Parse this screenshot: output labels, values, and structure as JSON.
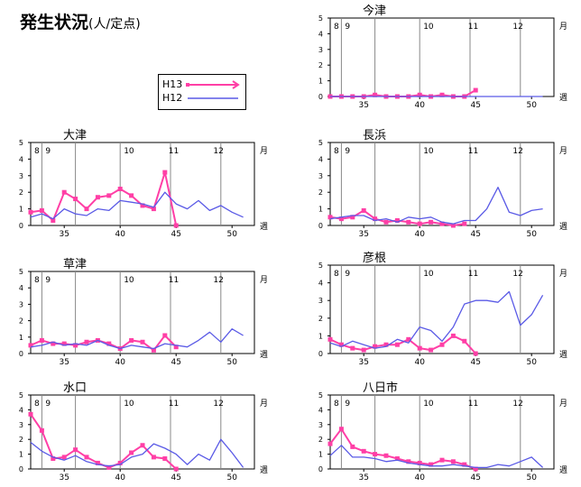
{
  "header": {
    "title": "発生状況",
    "unit": "(人/定点)"
  },
  "legend": {
    "h13": "H13",
    "h12": "H12"
  },
  "colors": {
    "h13": "#ff3fa6",
    "h12": "#5a5ae6",
    "axis": "#000000",
    "grid": "#888888"
  },
  "chart_data": [
    {
      "type": "line",
      "title": "今津",
      "x_ticks": [
        "35",
        "40",
        "45",
        "50"
      ],
      "y_ticks": [
        "0",
        "1",
        "2",
        "3",
        "4",
        "5"
      ],
      "month_labels": [
        "8",
        "9",
        "10",
        "11",
        "12"
      ],
      "month_unit": "月",
      "week_unit": "週",
      "xlim": [
        32,
        52
      ],
      "ylim": [
        0,
        5
      ],
      "series": [
        {
          "name": "H13",
          "x": [
            32,
            33,
            34,
            35,
            36,
            37,
            38,
            39,
            40,
            41,
            42,
            43,
            44,
            45
          ],
          "values": [
            0,
            0,
            0,
            0,
            0.1,
            0,
            0,
            0,
            0.1,
            0,
            0.1,
            0,
            0,
            0.4
          ]
        },
        {
          "name": "H12",
          "x": [
            32,
            33,
            34,
            35,
            36,
            37,
            38,
            39,
            40,
            41,
            42,
            43,
            44,
            45,
            46,
            47,
            48,
            49,
            50,
            51
          ],
          "values": [
            0,
            0,
            0,
            0,
            0,
            0,
            0,
            0,
            0,
            0,
            0,
            0,
            0,
            0,
            0,
            0,
            0,
            0,
            0,
            0
          ]
        }
      ]
    },
    {
      "type": "line",
      "title": "大津",
      "x_ticks": [
        "35",
        "40",
        "45",
        "50"
      ],
      "y_ticks": [
        "0",
        "1",
        "2",
        "3",
        "4",
        "5"
      ],
      "month_labels": [
        "8",
        "9",
        "10",
        "11",
        "12"
      ],
      "month_unit": "月",
      "week_unit": "週",
      "xlim": [
        32,
        52
      ],
      "ylim": [
        0,
        5
      ],
      "series": [
        {
          "name": "H13",
          "x": [
            32,
            33,
            34,
            35,
            36,
            37,
            38,
            39,
            40,
            41,
            42,
            43,
            44,
            45
          ],
          "values": [
            0.8,
            0.9,
            0.3,
            2.0,
            1.6,
            1.0,
            1.7,
            1.8,
            2.2,
            1.8,
            1.2,
            1.0,
            3.2,
            0
          ]
        },
        {
          "name": "H12",
          "x": [
            32,
            33,
            34,
            35,
            36,
            37,
            38,
            39,
            40,
            41,
            42,
            43,
            44,
            45,
            46,
            47,
            48,
            49,
            50,
            51
          ],
          "values": [
            0.5,
            0.7,
            0.4,
            1.0,
            0.7,
            0.6,
            1.0,
            0.9,
            1.5,
            1.4,
            1.3,
            1.1,
            2.0,
            1.3,
            1.0,
            1.5,
            0.9,
            1.2,
            0.8,
            0.5
          ]
        }
      ]
    },
    {
      "type": "line",
      "title": "長浜",
      "x_ticks": [
        "35",
        "40",
        "45",
        "50"
      ],
      "y_ticks": [
        "0",
        "1",
        "2",
        "3",
        "4",
        "5"
      ],
      "month_labels": [
        "8",
        "9",
        "10",
        "11",
        "12"
      ],
      "month_unit": "月",
      "week_unit": "週",
      "xlim": [
        32,
        52
      ],
      "ylim": [
        0,
        5
      ],
      "series": [
        {
          "name": "H13",
          "x": [
            32,
            33,
            34,
            35,
            36,
            37,
            38,
            39,
            40,
            41,
            42,
            43,
            44
          ],
          "values": [
            0.5,
            0.4,
            0.5,
            0.9,
            0.4,
            0.2,
            0.3,
            0.2,
            0.1,
            0.2,
            0.1,
            0,
            0.1
          ]
        },
        {
          "name": "H12",
          "x": [
            32,
            33,
            34,
            35,
            36,
            37,
            38,
            39,
            40,
            41,
            42,
            43,
            44,
            45,
            46,
            47,
            48,
            49,
            50,
            51
          ],
          "values": [
            0.4,
            0.5,
            0.6,
            0.6,
            0.3,
            0.4,
            0.2,
            0.5,
            0.4,
            0.5,
            0.2,
            0.1,
            0.3,
            0.3,
            1.0,
            2.3,
            0.8,
            0.6,
            0.9,
            1.0
          ]
        }
      ]
    },
    {
      "type": "line",
      "title": "草津",
      "x_ticks": [
        "35",
        "40",
        "45",
        "50"
      ],
      "y_ticks": [
        "0",
        "1",
        "2",
        "3",
        "4",
        "5"
      ],
      "month_labels": [
        "8",
        "9",
        "10",
        "11",
        "12"
      ],
      "month_unit": "月",
      "week_unit": "週",
      "xlim": [
        32,
        52
      ],
      "ylim": [
        0,
        5
      ],
      "series": [
        {
          "name": "H13",
          "x": [
            32,
            33,
            34,
            35,
            36,
            37,
            38,
            39,
            40,
            41,
            42,
            43,
            44,
            45
          ],
          "values": [
            0.5,
            0.8,
            0.6,
            0.6,
            0.5,
            0.7,
            0.8,
            0.6,
            0.3,
            0.8,
            0.7,
            0.2,
            1.1,
            0.4
          ]
        },
        {
          "name": "H12",
          "x": [
            32,
            33,
            34,
            35,
            36,
            37,
            38,
            39,
            40,
            41,
            42,
            43,
            44,
            45,
            46,
            47,
            48,
            49,
            50,
            51
          ],
          "values": [
            0.4,
            0.5,
            0.7,
            0.5,
            0.6,
            0.5,
            0.8,
            0.5,
            0.3,
            0.5,
            0.4,
            0.3,
            0.6,
            0.5,
            0.4,
            0.8,
            1.3,
            0.7,
            1.5,
            1.1
          ]
        }
      ]
    },
    {
      "type": "line",
      "title": "彦根",
      "x_ticks": [
        "35",
        "40",
        "45",
        "50"
      ],
      "y_ticks": [
        "0",
        "1",
        "2",
        "3",
        "4",
        "5"
      ],
      "month_labels": [
        "8",
        "9",
        "10",
        "11",
        "12"
      ],
      "month_unit": "月",
      "week_unit": "週",
      "xlim": [
        32,
        52
      ],
      "ylim": [
        0,
        5
      ],
      "series": [
        {
          "name": "H13",
          "x": [
            32,
            33,
            34,
            35,
            36,
            37,
            38,
            39,
            40,
            41,
            42,
            43,
            44,
            45
          ],
          "values": [
            0.8,
            0.5,
            0.3,
            0.2,
            0.4,
            0.5,
            0.5,
            0.8,
            0.3,
            0.2,
            0.5,
            1.0,
            0.7,
            0
          ]
        },
        {
          "name": "H12",
          "x": [
            32,
            33,
            34,
            35,
            36,
            37,
            38,
            39,
            40,
            41,
            42,
            43,
            44,
            45,
            46,
            47,
            48,
            49,
            50,
            51
          ],
          "values": [
            0.6,
            0.4,
            0.7,
            0.5,
            0.3,
            0.4,
            0.8,
            0.6,
            1.5,
            1.3,
            0.7,
            1.5,
            2.8,
            3.0,
            3.0,
            2.9,
            3.5,
            1.6,
            2.2,
            3.3
          ]
        }
      ]
    },
    {
      "type": "line",
      "title": "水口",
      "x_ticks": [
        "35",
        "40",
        "45",
        "50"
      ],
      "y_ticks": [
        "0",
        "1",
        "2",
        "3",
        "4",
        "5"
      ],
      "month_labels": [
        "8",
        "9",
        "10",
        "11",
        "12"
      ],
      "month_unit": "月",
      "week_unit": "週",
      "xlim": [
        32,
        52
      ],
      "ylim": [
        0,
        5
      ],
      "series": [
        {
          "name": "H13",
          "x": [
            32,
            33,
            34,
            35,
            36,
            37,
            38,
            39,
            40,
            41,
            42,
            43,
            44,
            45
          ],
          "values": [
            3.7,
            2.6,
            0.7,
            0.8,
            1.3,
            0.8,
            0.4,
            0.1,
            0.4,
            1.1,
            1.6,
            0.8,
            0.7,
            0
          ]
        },
        {
          "name": "H12",
          "x": [
            32,
            33,
            34,
            35,
            36,
            37,
            38,
            39,
            40,
            41,
            42,
            43,
            44,
            45,
            46,
            47,
            48,
            49,
            50,
            51
          ],
          "values": [
            1.8,
            1.2,
            0.8,
            0.6,
            0.9,
            0.5,
            0.3,
            0.2,
            0.3,
            0.8,
            1.0,
            1.7,
            1.4,
            1.0,
            0.3,
            1.0,
            0.6,
            2.0,
            1.1,
            0.1
          ]
        }
      ]
    },
    {
      "type": "line",
      "title": "八日市",
      "x_ticks": [
        "35",
        "40",
        "45",
        "50"
      ],
      "y_ticks": [
        "0",
        "1",
        "2",
        "3",
        "4",
        "5"
      ],
      "month_labels": [
        "8",
        "9",
        "10",
        "11",
        "12"
      ],
      "month_unit": "月",
      "week_unit": "週",
      "xlim": [
        32,
        52
      ],
      "ylim": [
        0,
        5
      ],
      "series": [
        {
          "name": "H13",
          "x": [
            32,
            33,
            34,
            35,
            36,
            37,
            38,
            39,
            40,
            41,
            42,
            43,
            44,
            45
          ],
          "values": [
            1.7,
            2.7,
            1.5,
            1.2,
            1.0,
            0.9,
            0.7,
            0.5,
            0.4,
            0.3,
            0.6,
            0.5,
            0.3,
            0
          ]
        },
        {
          "name": "H12",
          "x": [
            32,
            33,
            34,
            35,
            36,
            37,
            38,
            39,
            40,
            41,
            42,
            43,
            44,
            45,
            46,
            47,
            48,
            49,
            50,
            51
          ],
          "values": [
            0.9,
            1.6,
            0.8,
            0.8,
            0.7,
            0.5,
            0.6,
            0.4,
            0.3,
            0.2,
            0.2,
            0.3,
            0.2,
            0.1,
            0.1,
            0.3,
            0.2,
            0.5,
            0.8,
            0.1
          ]
        }
      ]
    }
  ]
}
